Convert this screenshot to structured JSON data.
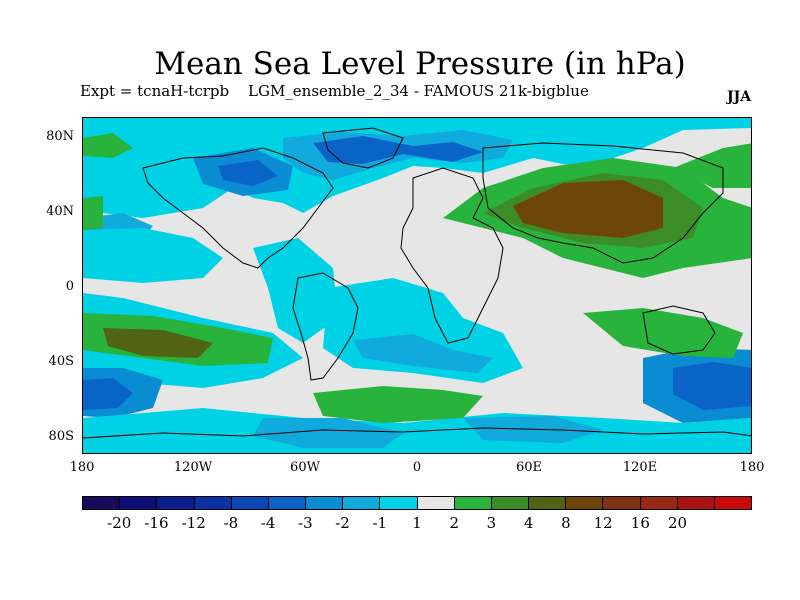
{
  "title": "Mean Sea Level Pressure (in hPa)",
  "subtitle_left": "Expt = tcnaH-tcrpb",
  "subtitle_mid": "LGM_ensemble_2_34 - FAMOUS 21k-bigblue",
  "season": "JJA",
  "lat_ticks": [
    "80N",
    "40N",
    "0",
    "40S",
    "80S"
  ],
  "lon_ticks": [
    "180",
    "120W",
    "60W",
    "0",
    "60E",
    "120E",
    "180"
  ],
  "colorbar": {
    "colors": [
      "#1a0a5e",
      "#0e0e78",
      "#0a1e8c",
      "#0a32a0",
      "#0a46b4",
      "#0a64c8",
      "#0a8cd2",
      "#10aadc",
      "#00d2e6",
      "#e6e6e6",
      "#28b43c",
      "#3c8c28",
      "#506414",
      "#6e460a",
      "#823214",
      "#962814",
      "#aa1410",
      "#c80a0a"
    ],
    "labels": [
      "-20",
      "-16",
      "-12",
      "-8",
      "-4",
      "-3",
      "-2",
      "-1",
      "1",
      "2",
      "3",
      "4",
      "8",
      "12",
      "16",
      "20"
    ]
  },
  "legend_colors": {
    "neutral": "#e6e6e6",
    "neg1": "#00d2e6",
    "neg2": "#10aadc",
    "neg3": "#0a8cd2",
    "neg4": "#0a64c8",
    "neg8": "#0a46b4",
    "pos1": "#28b43c",
    "pos2": "#3c8c28",
    "pos3": "#506414",
    "pos4": "#6e460a"
  }
}
